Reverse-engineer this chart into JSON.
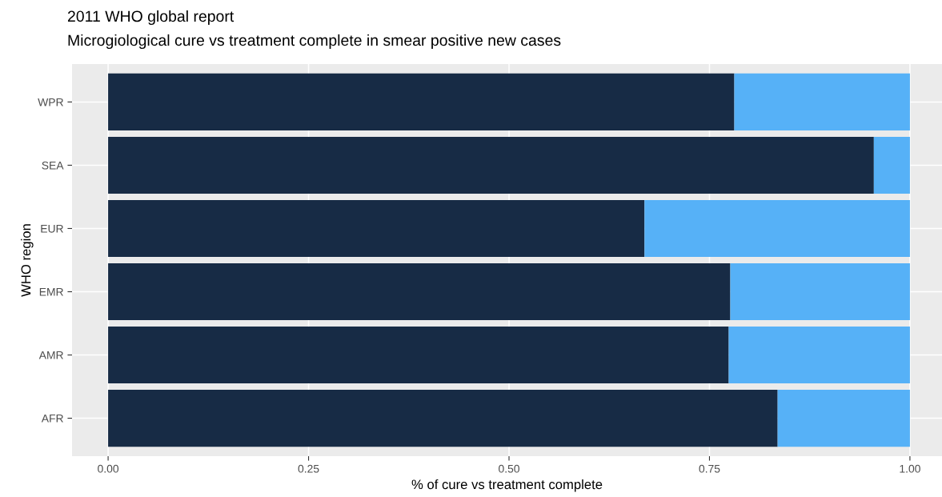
{
  "chart_data": {
    "type": "bar",
    "orientation": "horizontal",
    "stacked": true,
    "title": "2011 WHO global report",
    "subtitle": "Microgiological cure vs treatment complete in smear positive new cases",
    "xlabel": "% of cure vs treatment complete",
    "ylabel": "WHO region",
    "categories": [
      "WPR",
      "SEA",
      "EUR",
      "EMR",
      "AMR",
      "AFR"
    ],
    "series": [
      {
        "color": "#172b45",
        "values": [
          0.781,
          0.955,
          0.669,
          0.776,
          0.774,
          0.835
        ]
      },
      {
        "color": "#56b1f7",
        "values": [
          0.219,
          0.045,
          0.331,
          0.224,
          0.226,
          0.165
        ]
      }
    ],
    "xlim": [
      -0.045,
      1.04
    ],
    "xticks": [
      {
        "value": 0,
        "label": "0.00"
      },
      {
        "value": 0.25,
        "label": "0.25"
      },
      {
        "value": 0.5,
        "label": "0.50"
      },
      {
        "value": 0.75,
        "label": "0.75"
      },
      {
        "value": 1,
        "label": "1.00"
      }
    ],
    "grid": true,
    "legend": false
  }
}
